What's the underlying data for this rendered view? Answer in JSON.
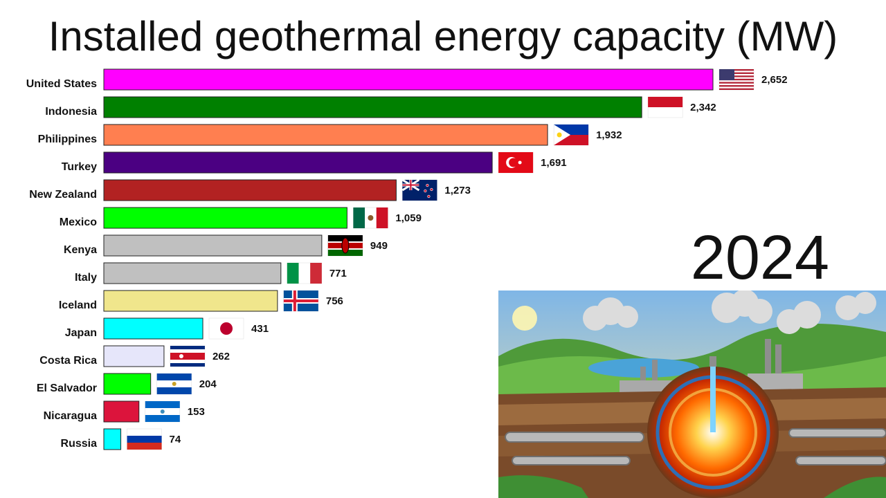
{
  "chart_data": {
    "type": "bar",
    "orientation": "horizontal",
    "title": "Installed geothermal energy capacity (MW)",
    "year": "2024",
    "categories": [
      "United States",
      "Indonesia",
      "Philippines",
      "Turkey",
      "New Zealand",
      "Mexico",
      "Kenya",
      "Italy",
      "Iceland",
      "Japan",
      "Costa Rica",
      "El Salvador",
      "Nicaragua",
      "Russia"
    ],
    "values": [
      2652,
      2342,
      1932,
      1691,
      1273,
      1059,
      949,
      771,
      756,
      431,
      262,
      204,
      153,
      74
    ],
    "value_labels": [
      "2,652",
      "2,342",
      "1,932",
      "1,691",
      "1,273",
      "1,059",
      "949",
      "771",
      "756",
      "431",
      "262",
      "204",
      "153",
      "74"
    ],
    "colors": [
      "#ff00ff",
      "#008000",
      "#ff7f50",
      "#4b0082",
      "#b22222",
      "#00ff00",
      "#c0c0c0",
      "#c0c0c0",
      "#f0e68c",
      "#00ffff",
      "#e6e6fa",
      "#00ff00",
      "#dc143c",
      "#00ffff"
    ],
    "flags": [
      "us-flag-icon",
      "indonesia-flag-icon",
      "philippines-flag-icon",
      "turkey-flag-icon",
      "new-zealand-flag-icon",
      "mexico-flag-icon",
      "kenya-flag-icon",
      "italy-flag-icon",
      "iceland-flag-icon",
      "japan-flag-icon",
      "costa-rica-flag-icon",
      "el-salvador-flag-icon",
      "nicaragua-flag-icon",
      "russia-flag-icon"
    ],
    "xlim": [
      0,
      2652
    ],
    "grid": false,
    "legend": "none"
  },
  "illustration": {
    "icon": "geothermal-power-plant-illustration"
  }
}
